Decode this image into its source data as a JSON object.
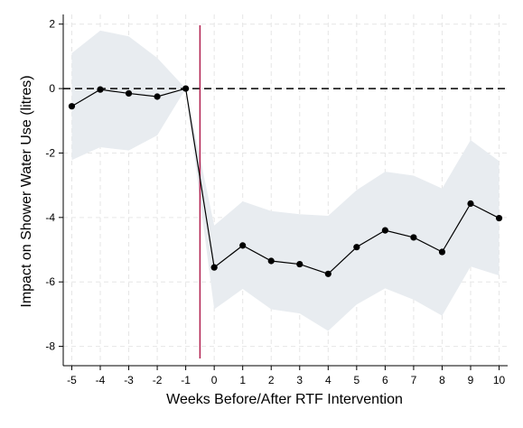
{
  "chart_data": {
    "type": "line",
    "xlabel": "Weeks Before/After RTF Intervention",
    "ylabel": "Impact on Shower Water Use (litres)",
    "x": [
      -5,
      -4,
      -3,
      -2,
      -1,
      0,
      1,
      2,
      3,
      4,
      5,
      6,
      7,
      8,
      9,
      10
    ],
    "xlim": [
      -5.3,
      10.3
    ],
    "ylim": [
      -8.6,
      2.3
    ],
    "xticks": [
      "-5",
      "-4",
      "-3",
      "-2",
      "-1",
      "0",
      "1",
      "2",
      "3",
      "4",
      "5",
      "6",
      "7",
      "8",
      "9",
      "10"
    ],
    "yticks": [
      "2",
      "0",
      "-2",
      "-4",
      "-6",
      "-8"
    ],
    "grid": true,
    "series": [
      {
        "values": [
          -0.55,
          -0.03,
          -0.15,
          -0.25,
          0.0,
          -5.55,
          -4.87,
          -5.35,
          -5.45,
          -5.75,
          -4.92,
          -4.4,
          -4.62,
          -5.07,
          -3.57,
          -4.02
        ],
        "ci_upper": [
          1.1,
          1.8,
          1.62,
          0.95,
          0.0,
          -4.25,
          -3.5,
          -3.8,
          -3.9,
          -3.95,
          -3.15,
          -2.58,
          -2.7,
          -3.1,
          -1.6,
          -2.25
        ],
        "ci_lower": [
          -2.22,
          -1.82,
          -1.92,
          -1.45,
          0.0,
          -6.85,
          -6.22,
          -6.85,
          -6.98,
          -7.52,
          -6.7,
          -6.2,
          -6.55,
          -7.05,
          -5.52,
          -5.8
        ]
      }
    ],
    "reference_lines": [
      {
        "type": "horizontal",
        "value": 0,
        "style": "dashed",
        "color": "#000000"
      },
      {
        "type": "vertical",
        "value": -0.5,
        "style": "solid",
        "color": "#b22050"
      }
    ],
    "colors": {
      "line": "#000000",
      "ci_band": "#e8ecf0",
      "grid": "#e6e6e6",
      "marker": "#000000"
    }
  }
}
